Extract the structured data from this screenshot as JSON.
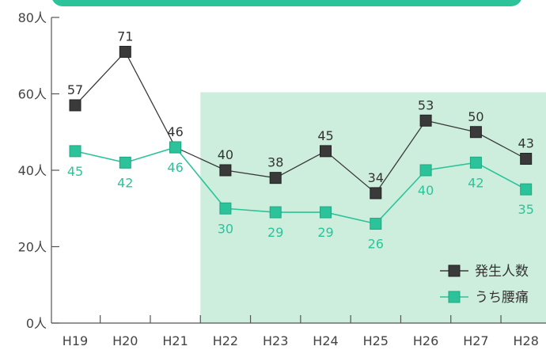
{
  "chart_data": {
    "type": "line",
    "categories": [
      "H19",
      "H20",
      "H21",
      "H22",
      "H23",
      "H24",
      "H25",
      "H26",
      "H27",
      "H28"
    ],
    "ylim": [
      0,
      80
    ],
    "yticks": [
      "0人",
      "20人",
      "40人",
      "60人",
      "80人"
    ],
    "grid": false,
    "legend_position": "bottom-right",
    "highlight_region": {
      "from": "H22",
      "to": "H28",
      "color": "#cdeedd"
    },
    "series": [
      {
        "name": "発生人数",
        "values": [
          57,
          71,
          46,
          40,
          38,
          45,
          34,
          53,
          50,
          43
        ],
        "color": "#3a3a3a",
        "label_color": "#333333",
        "labels_position": "above"
      },
      {
        "name": "うち腰痛",
        "values": [
          45,
          42,
          46,
          30,
          29,
          29,
          26,
          40,
          42,
          35
        ],
        "color": "#2cc39a",
        "label_color": "#2cc39a",
        "labels_position": "below"
      }
    ]
  }
}
